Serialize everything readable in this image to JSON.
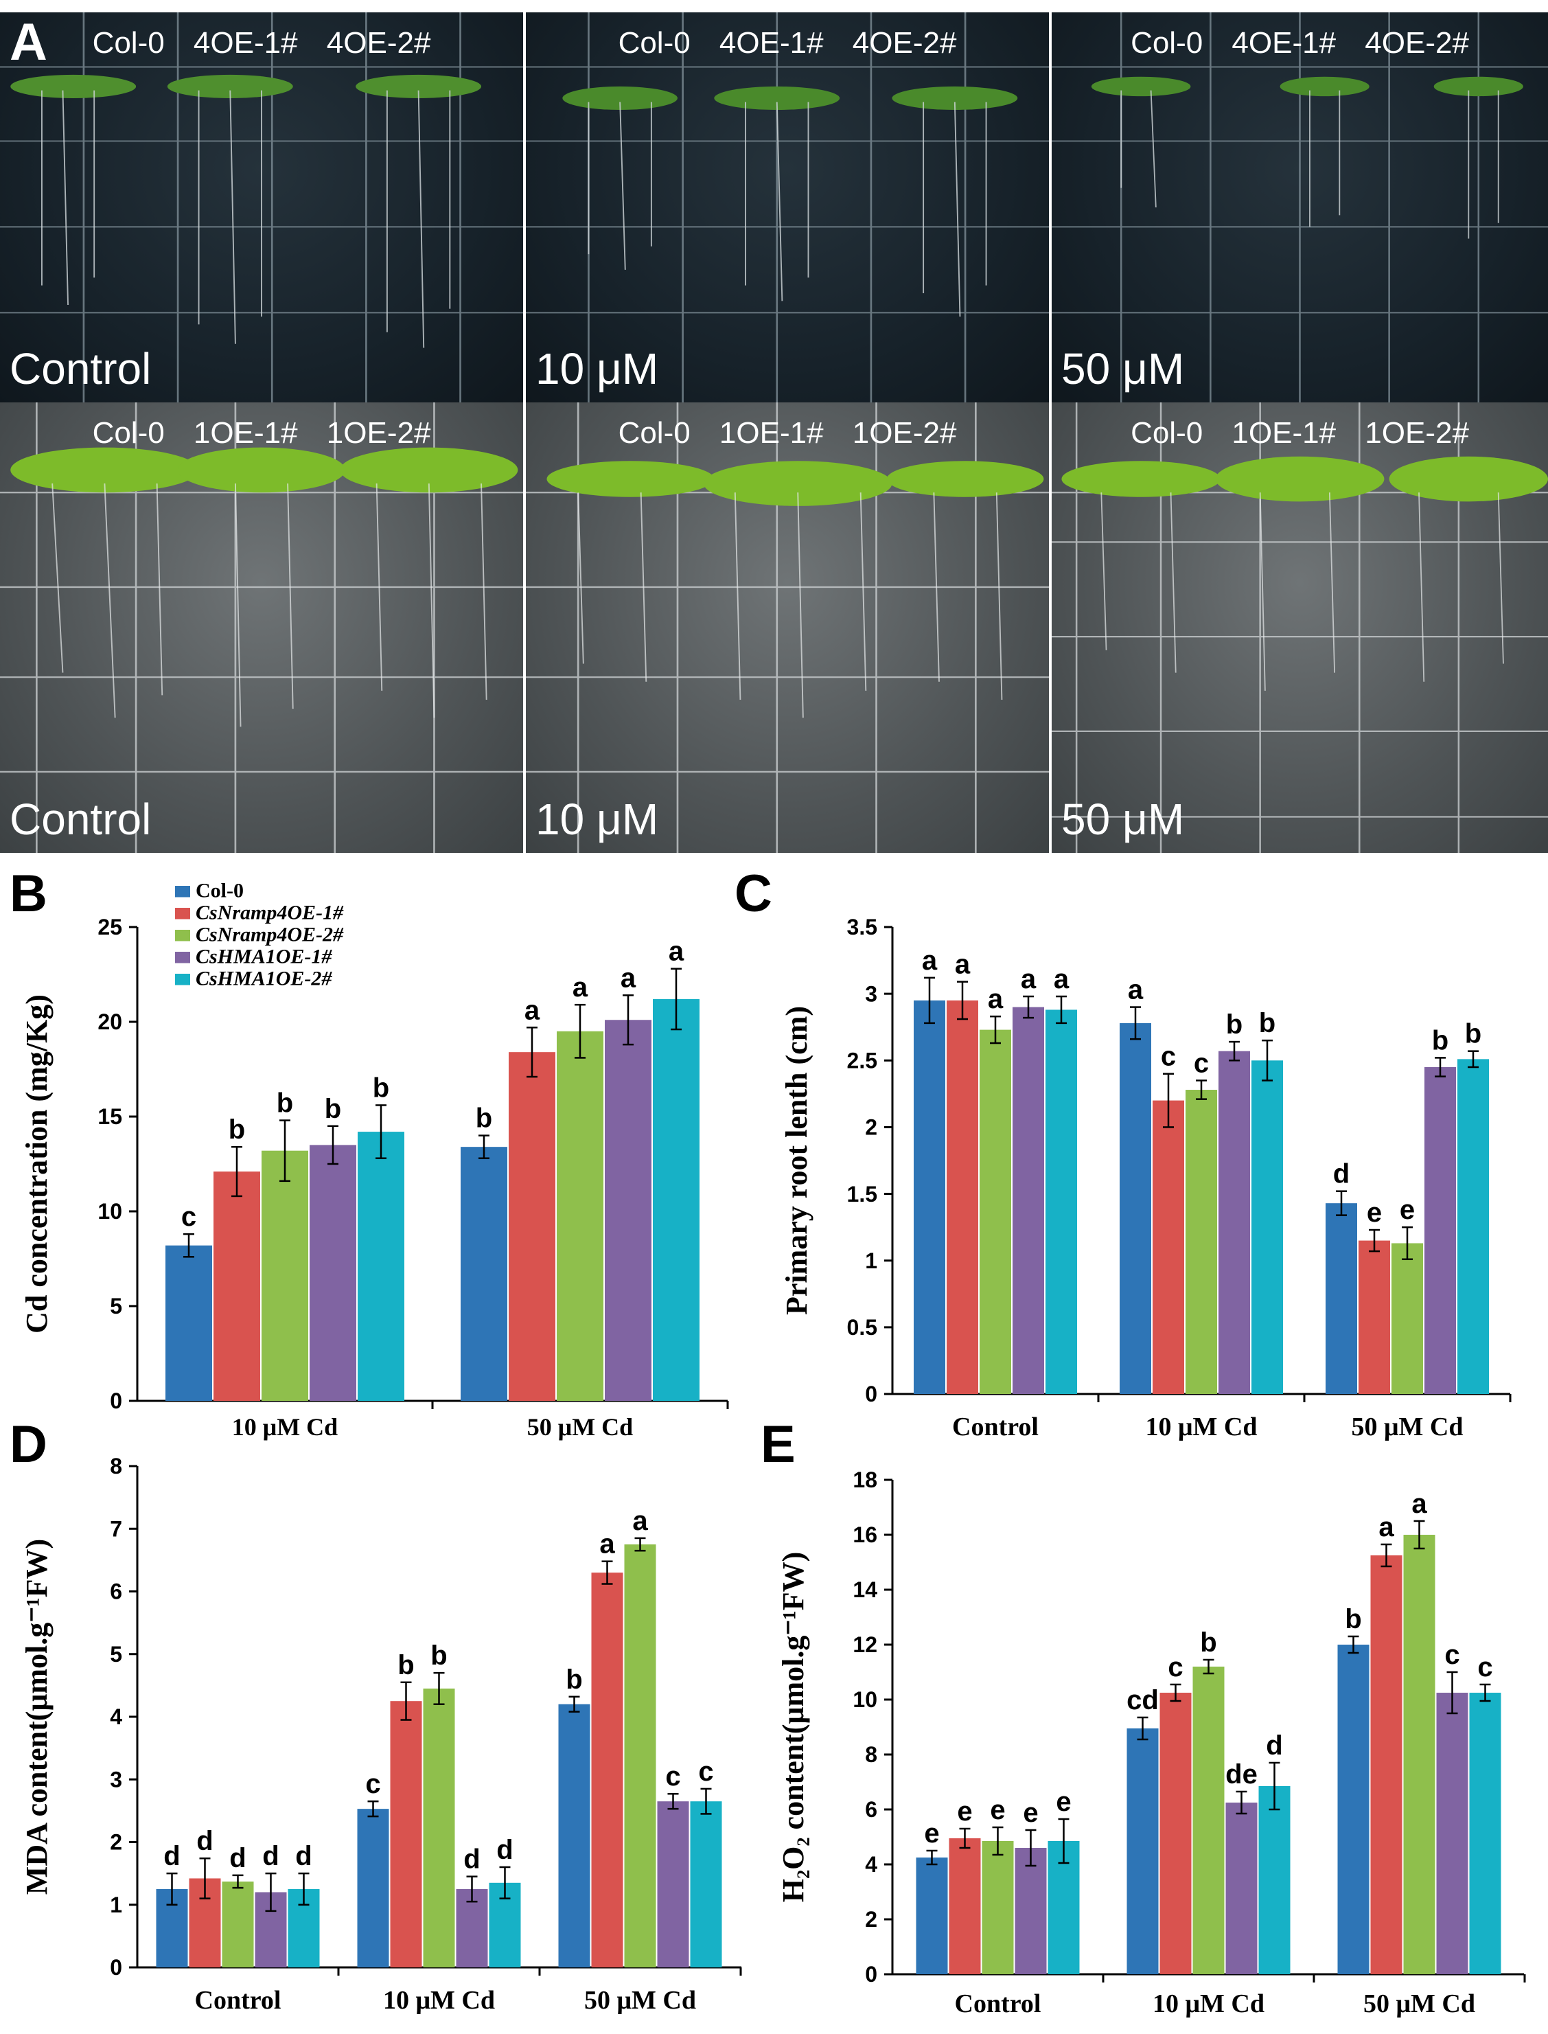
{
  "panel_labels": {
    "a": "A",
    "b": "B",
    "c": "C",
    "d": "D",
    "e": "E"
  },
  "photos": {
    "row1": [
      {
        "genotypes": "Col-0 4OE-1# 4OE-2#",
        "treatment": "Control"
      },
      {
        "genotypes": "Col-0 4OE-1# 4OE-2#",
        "treatment": "10 μM"
      },
      {
        "genotypes": "Col-0 4OE-1# 4OE-2#",
        "treatment": "50 μM"
      }
    ],
    "row2": [
      {
        "genotypes": "Col-0 1OE-1# 1OE-2#",
        "treatment": "Control"
      },
      {
        "genotypes": "Col-0 1OE-1# 1OE-2#",
        "treatment": "10 μM"
      },
      {
        "genotypes": "Col-0 1OE-1# 1OE-2#",
        "treatment": "50 μM"
      }
    ]
  },
  "colors": {
    "series": [
      "#2e75b6",
      "#d9534f",
      "#8fbf4c",
      "#8064a2",
      "#17b1c6"
    ]
  },
  "legend": [
    "Col-0",
    "CsNramp4OE-1#",
    "CsNramp4OE-2#",
    "CsHMA1OE-1#",
    "CsHMA1OE-2#"
  ],
  "chart_data": [
    {
      "id": "B",
      "type": "bar",
      "ylabel": "Cd concentration (mg/Kg)",
      "xlabel": "",
      "categories": [
        "10 μM Cd",
        "50 μM Cd"
      ],
      "ylim": [
        0,
        25
      ],
      "yticks": [
        0,
        5,
        10,
        15,
        20,
        25
      ],
      "series": [
        {
          "name": "Col-0",
          "values": [
            8.2,
            13.4
          ],
          "errors": [
            0.6,
            0.6
          ],
          "letters": [
            "c",
            "b"
          ]
        },
        {
          "name": "CsNramp4OE-1#",
          "values": [
            12.1,
            18.4
          ],
          "errors": [
            1.3,
            1.3
          ],
          "letters": [
            "b",
            "a"
          ]
        },
        {
          "name": "CsNramp4OE-2#",
          "values": [
            13.2,
            19.5
          ],
          "errors": [
            1.6,
            1.4
          ],
          "letters": [
            "b",
            "a"
          ]
        },
        {
          "name": "CsHMA1OE-1#",
          "values": [
            13.5,
            20.1
          ],
          "errors": [
            1.0,
            1.3
          ],
          "letters": [
            "b",
            "a"
          ]
        },
        {
          "name": "CsHMA1OE-2#",
          "values": [
            14.2,
            21.2
          ],
          "errors": [
            1.4,
            1.6
          ],
          "letters": [
            "b",
            "a"
          ]
        }
      ]
    },
    {
      "id": "C",
      "type": "bar",
      "ylabel": "Primary root lenth (cm)",
      "xlabel": "",
      "categories": [
        "Control",
        "10 μM Cd",
        "50 μM Cd"
      ],
      "ylim": [
        0,
        3.5
      ],
      "yticks": [
        0,
        0.5,
        1,
        1.5,
        2,
        2.5,
        3,
        3.5
      ],
      "series": [
        {
          "name": "Col-0",
          "values": [
            2.95,
            2.78,
            1.43
          ],
          "errors": [
            0.17,
            0.12,
            0.09
          ],
          "letters": [
            "a",
            "a",
            "d"
          ]
        },
        {
          "name": "CsNramp4OE-1#",
          "values": [
            2.95,
            2.2,
            1.15
          ],
          "errors": [
            0.14,
            0.2,
            0.08
          ],
          "letters": [
            "a",
            "c",
            "e"
          ]
        },
        {
          "name": "CsNramp4OE-2#",
          "values": [
            2.73,
            2.28,
            1.13
          ],
          "errors": [
            0.1,
            0.07,
            0.12
          ],
          "letters": [
            "a",
            "c",
            "e"
          ]
        },
        {
          "name": "CsHMA1OE-1#",
          "values": [
            2.9,
            2.57,
            2.45
          ],
          "errors": [
            0.08,
            0.07,
            0.07
          ],
          "letters": [
            "a",
            "b",
            "b"
          ]
        },
        {
          "name": "CsHMA1OE-2#",
          "values": [
            2.88,
            2.5,
            2.51
          ],
          "errors": [
            0.1,
            0.15,
            0.06
          ],
          "letters": [
            "a",
            "b",
            "b"
          ]
        }
      ]
    },
    {
      "id": "D",
      "type": "bar",
      "ylabel": "MDA content(μmol.g⁻¹FW)",
      "xlabel": "",
      "categories": [
        "Control",
        "10 μM Cd",
        "50 μM Cd"
      ],
      "ylim": [
        0,
        8
      ],
      "yticks": [
        0,
        1,
        2,
        3,
        4,
        5,
        6,
        7,
        8
      ],
      "series": [
        {
          "name": "Col-0",
          "values": [
            1.25,
            2.53,
            4.2
          ],
          "errors": [
            0.25,
            0.12,
            0.12
          ],
          "letters": [
            "d",
            "c",
            "b"
          ]
        },
        {
          "name": "CsNramp4OE-1#",
          "values": [
            1.42,
            4.25,
            6.3
          ],
          "errors": [
            0.32,
            0.3,
            0.18
          ],
          "letters": [
            "d",
            "b",
            "a"
          ]
        },
        {
          "name": "CsNramp4OE-2#",
          "values": [
            1.37,
            4.45,
            6.75
          ],
          "errors": [
            0.1,
            0.25,
            0.1
          ],
          "letters": [
            "d",
            "b",
            "a"
          ]
        },
        {
          "name": "CsHMA1OE-1#",
          "values": [
            1.2,
            1.25,
            2.65
          ],
          "errors": [
            0.3,
            0.2,
            0.12
          ],
          "letters": [
            "d",
            "d",
            "c"
          ]
        },
        {
          "name": "CsHMA1OE-2#",
          "values": [
            1.25,
            1.35,
            2.65
          ],
          "errors": [
            0.25,
            0.25,
            0.2
          ],
          "letters": [
            "d",
            "d",
            "c"
          ]
        }
      ]
    },
    {
      "id": "E",
      "type": "bar",
      "ylabel": "H₂O₂ content(μmol.g⁻¹FW)",
      "xlabel": "",
      "categories": [
        "Control",
        "10 μM Cd",
        "50 μM Cd"
      ],
      "ylim": [
        0,
        18
      ],
      "yticks": [
        0,
        2,
        4,
        6,
        8,
        10,
        12,
        14,
        16,
        18
      ],
      "series": [
        {
          "name": "Col-0",
          "values": [
            4.25,
            8.95,
            12.0
          ],
          "errors": [
            0.25,
            0.4,
            0.3
          ],
          "letters": [
            "e",
            "cd",
            "b"
          ]
        },
        {
          "name": "CsNramp4OE-1#",
          "values": [
            4.95,
            10.25,
            15.25
          ],
          "errors": [
            0.35,
            0.3,
            0.4
          ],
          "letters": [
            "e",
            "c",
            "a"
          ]
        },
        {
          "name": "CsNramp4OE-2#",
          "values": [
            4.85,
            11.2,
            16.0
          ],
          "errors": [
            0.5,
            0.25,
            0.5
          ],
          "letters": [
            "e",
            "b",
            "a"
          ]
        },
        {
          "name": "CsHMA1OE-1#",
          "values": [
            4.6,
            6.25,
            10.25
          ],
          "errors": [
            0.65,
            0.4,
            0.75
          ],
          "letters": [
            "e",
            "de",
            "c"
          ]
        },
        {
          "name": "CsHMA1OE-2#",
          "values": [
            4.85,
            6.85,
            10.25
          ],
          "errors": [
            0.8,
            0.85,
            0.3
          ],
          "letters": [
            "e",
            "d",
            "c"
          ]
        }
      ]
    }
  ]
}
